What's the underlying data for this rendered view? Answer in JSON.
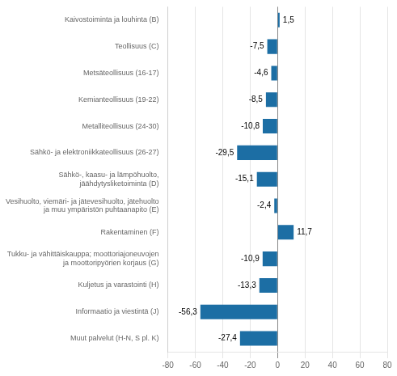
{
  "chart_data": {
    "type": "bar",
    "orientation": "horizontal",
    "categories": [
      "Kaivostoiminta ja louhinta (B)",
      "Teollisuus (C)",
      "Metsäteollisuus (16-17)",
      "Kemianteollisuus (19-22)",
      "Metalliteollisuus (24-30)",
      "Sähkö- ja elektroniikkateollisuus (26-27)",
      "Sähkö-, kaasu- ja lämpöhuolto,\njäähdytysliketoiminta (D)",
      "Vesihuolto, viemäri- ja jätevesihuolto, jätehuolto\nja muu ympäristön puhtaanapito (E)",
      "Rakentaminen (F)",
      "Tukku- ja vähittäiskauppa; moottoriajoneuvojen\nja moottoripyörien korjaus (G)",
      "Kuljetus ja varastointi (H)",
      "Informaatio ja viestintä (J)",
      "Muut palvelut (H-N, S pl. K)"
    ],
    "values": [
      1.5,
      -7.5,
      -4.6,
      -8.5,
      -10.8,
      -29.5,
      -15.1,
      -2.4,
      11.7,
      -10.9,
      -13.3,
      -56.3,
      -27.4
    ],
    "value_labels": [
      "1,5",
      "-7,5",
      "-4,6",
      "-8,5",
      "-10,8",
      "-29,5",
      "-15,1",
      "-2,4",
      "11,7",
      "-10,9",
      "-13,3",
      "-56,3",
      "-27,4"
    ],
    "data_labels": true,
    "color": "#1C6EA4",
    "xlim": [
      -80,
      80
    ],
    "xticks": [
      -80,
      -60,
      -40,
      -20,
      0,
      20,
      40,
      60,
      80
    ],
    "grid": true
  }
}
